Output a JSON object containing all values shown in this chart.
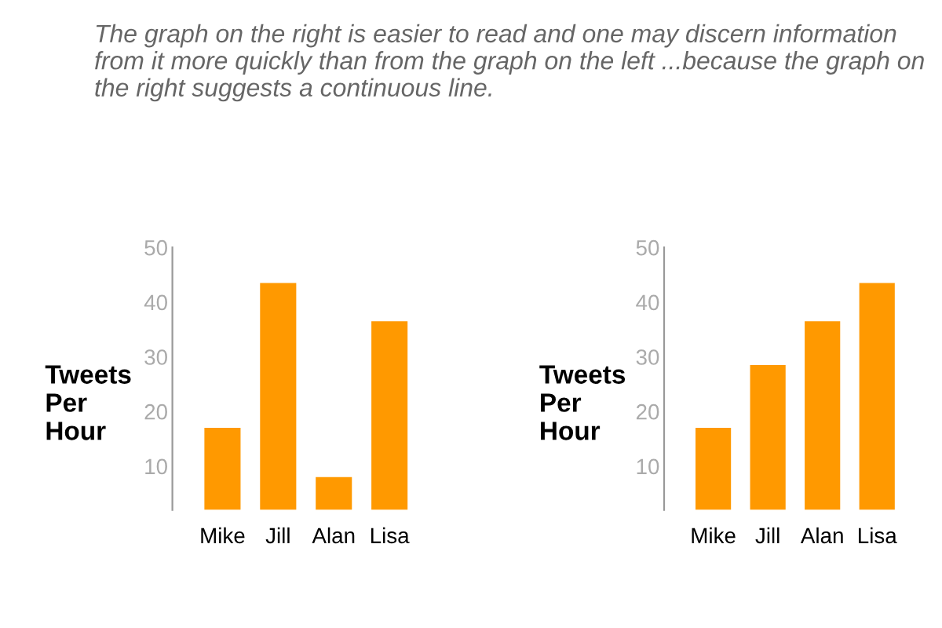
{
  "chart_data": [
    {
      "type": "bar",
      "title": "The graph on the right is easier to read and one may discern information from it more quickly than from the graph on the left ...because the graph on the right suggests a continuous line.",
      "ylabel": "Tweets\nPer\nHour",
      "categories": [
        "Mike",
        "Jill",
        "Alan",
        "Lisa"
      ],
      "values": [
        17,
        43.5,
        8,
        36.5
      ],
      "color": "#ff9900",
      "ylim": [
        2,
        50
      ],
      "yticks": [
        10,
        20,
        30,
        40,
        50
      ],
      "grid": false
    },
    {
      "type": "bar",
      "ylabel": "Tweets\nPer\nHour",
      "categories": [
        "Mike",
        "Jill",
        "Alan",
        "Lisa"
      ],
      "values": [
        17,
        28.5,
        36.5,
        43.5
      ],
      "color": "#ff9900",
      "ylim": [
        2,
        50
      ],
      "yticks": [
        10,
        20,
        30,
        40,
        50
      ],
      "grid": false
    }
  ]
}
